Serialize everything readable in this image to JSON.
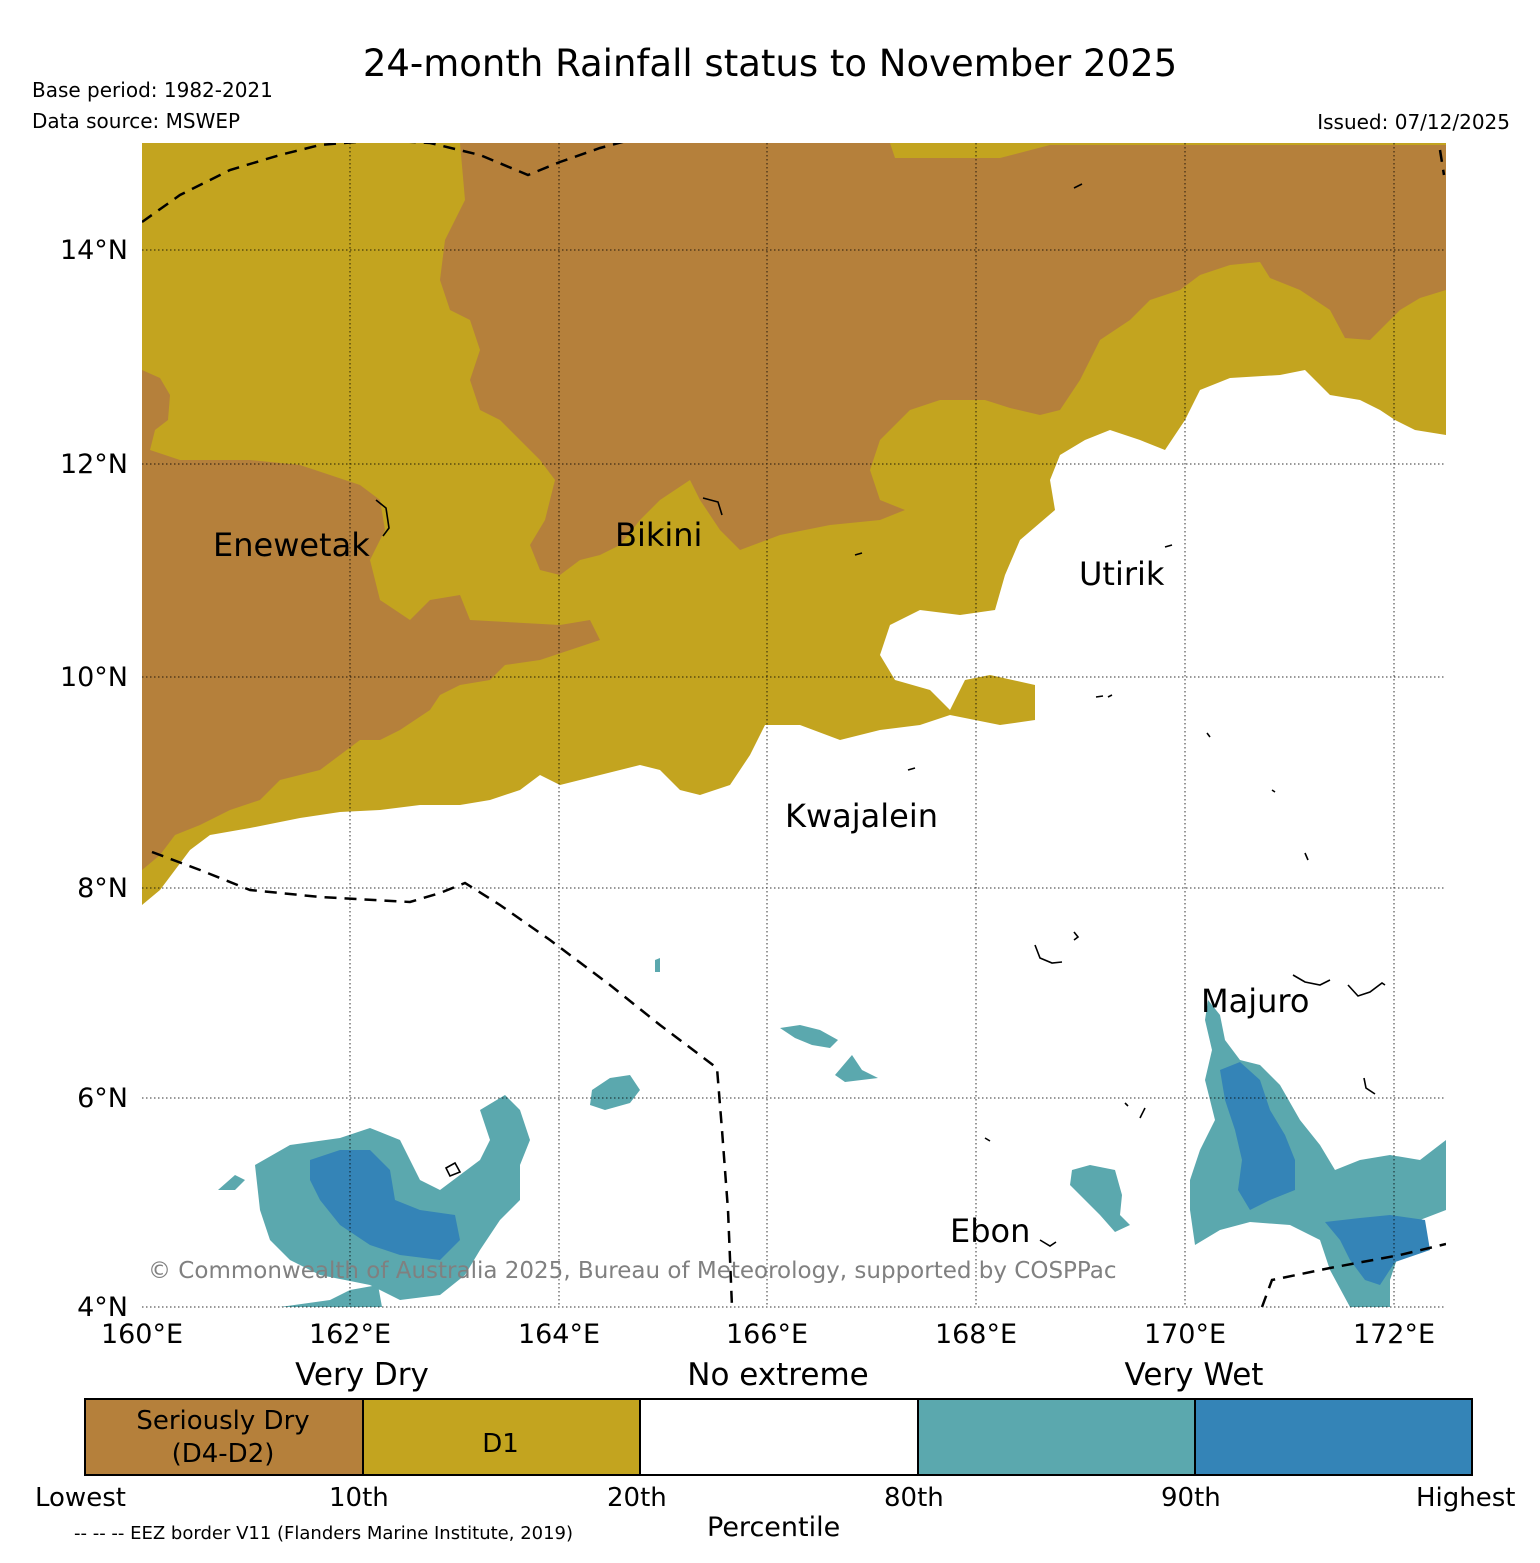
{
  "title": "24-month Rainfall status to November 2025",
  "base_period": "Base period: 1982-2021",
  "data_source": "Data source: MSWEP",
  "issued": "Issued: 07/12/2025",
  "copyright": "© Commonwealth of Australia 2025, Bureau of Meteorology, supported by COSPPac",
  "map": {
    "latitude_labels": [
      "14°N",
      "12°N",
      "10°N",
      "8°N",
      "6°N",
      "4°N"
    ],
    "longitude_labels": [
      "160°E",
      "162°E",
      "164°E",
      "166°E",
      "168°E",
      "170°E",
      "172°E"
    ],
    "places": [
      "Enewetak",
      "Bikini",
      "Utirik",
      "Kwajalein",
      "Majuro",
      "Ebon"
    ]
  },
  "legend": {
    "category_headers": [
      "Very Dry",
      "No extreme",
      "Very Wet"
    ],
    "classes": [
      {
        "label_line1": "Seriously Dry",
        "label_line2": "(D4-D2)",
        "color": "#b5803b"
      },
      {
        "label": "D1",
        "color": "#c3a41f"
      },
      {
        "label": "",
        "color": "#ffffff"
      },
      {
        "label": "",
        "color": "#5ba8ae"
      },
      {
        "label": "",
        "color": "#3484b7"
      }
    ],
    "percentile_ticks": [
      "Lowest",
      "10th",
      "20th",
      "80th",
      "90th",
      "Highest"
    ],
    "axis_label": "Percentile"
  },
  "eez_note": "-- -- -- EEZ border V11 (Flanders Marine Institute, 2019)",
  "colors": {
    "seriously_dry": "#b5803b",
    "d1": "#c3a41f",
    "no_extreme": "#ffffff",
    "very_wet": "#5ba8ae",
    "very_wet_highest": "#3484b7"
  }
}
